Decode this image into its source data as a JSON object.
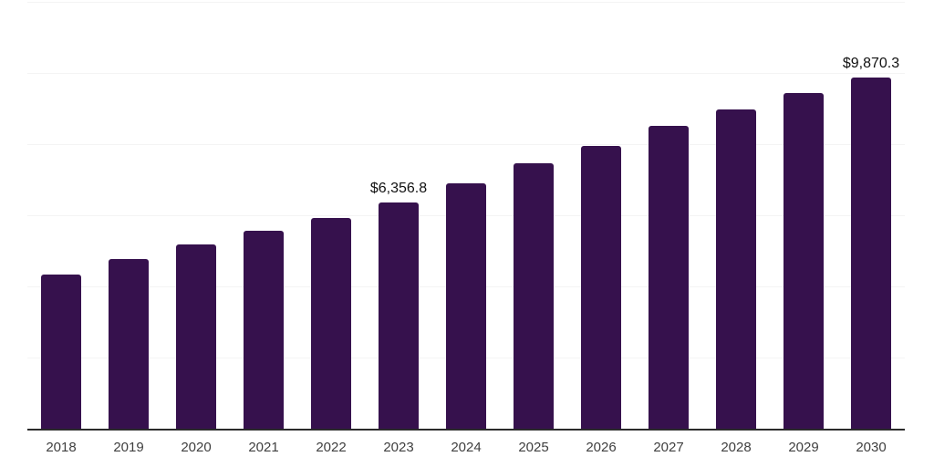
{
  "chart_data": {
    "type": "bar",
    "title": "",
    "xlabel": "",
    "ylabel": "",
    "legend": "none",
    "grid": "horizontal",
    "y_axis_labels_visible": false,
    "ylim": [
      0,
      12000
    ],
    "gridline_interval": 2000,
    "categories": [
      "2018",
      "2019",
      "2020",
      "2021",
      "2022",
      "2023",
      "2024",
      "2025",
      "2026",
      "2027",
      "2028",
      "2029",
      "2030"
    ],
    "values": [
      4330,
      4760,
      5170,
      5560,
      5930,
      6356.8,
      6900,
      7450,
      7960,
      8500,
      8970,
      9440,
      9870.3
    ],
    "value_labels": [
      "",
      "",
      "",
      "",
      "",
      "$6,356.8",
      "",
      "",
      "",
      "",
      "",
      "",
      "$9,870.3"
    ],
    "colors": {
      "bar": "#36114d",
      "gridline": "#f4f4f4",
      "axis_line": "#2b2b2b",
      "tick_label": "#3f3f3f",
      "data_label": "#111111",
      "background": "#ffffff"
    }
  }
}
